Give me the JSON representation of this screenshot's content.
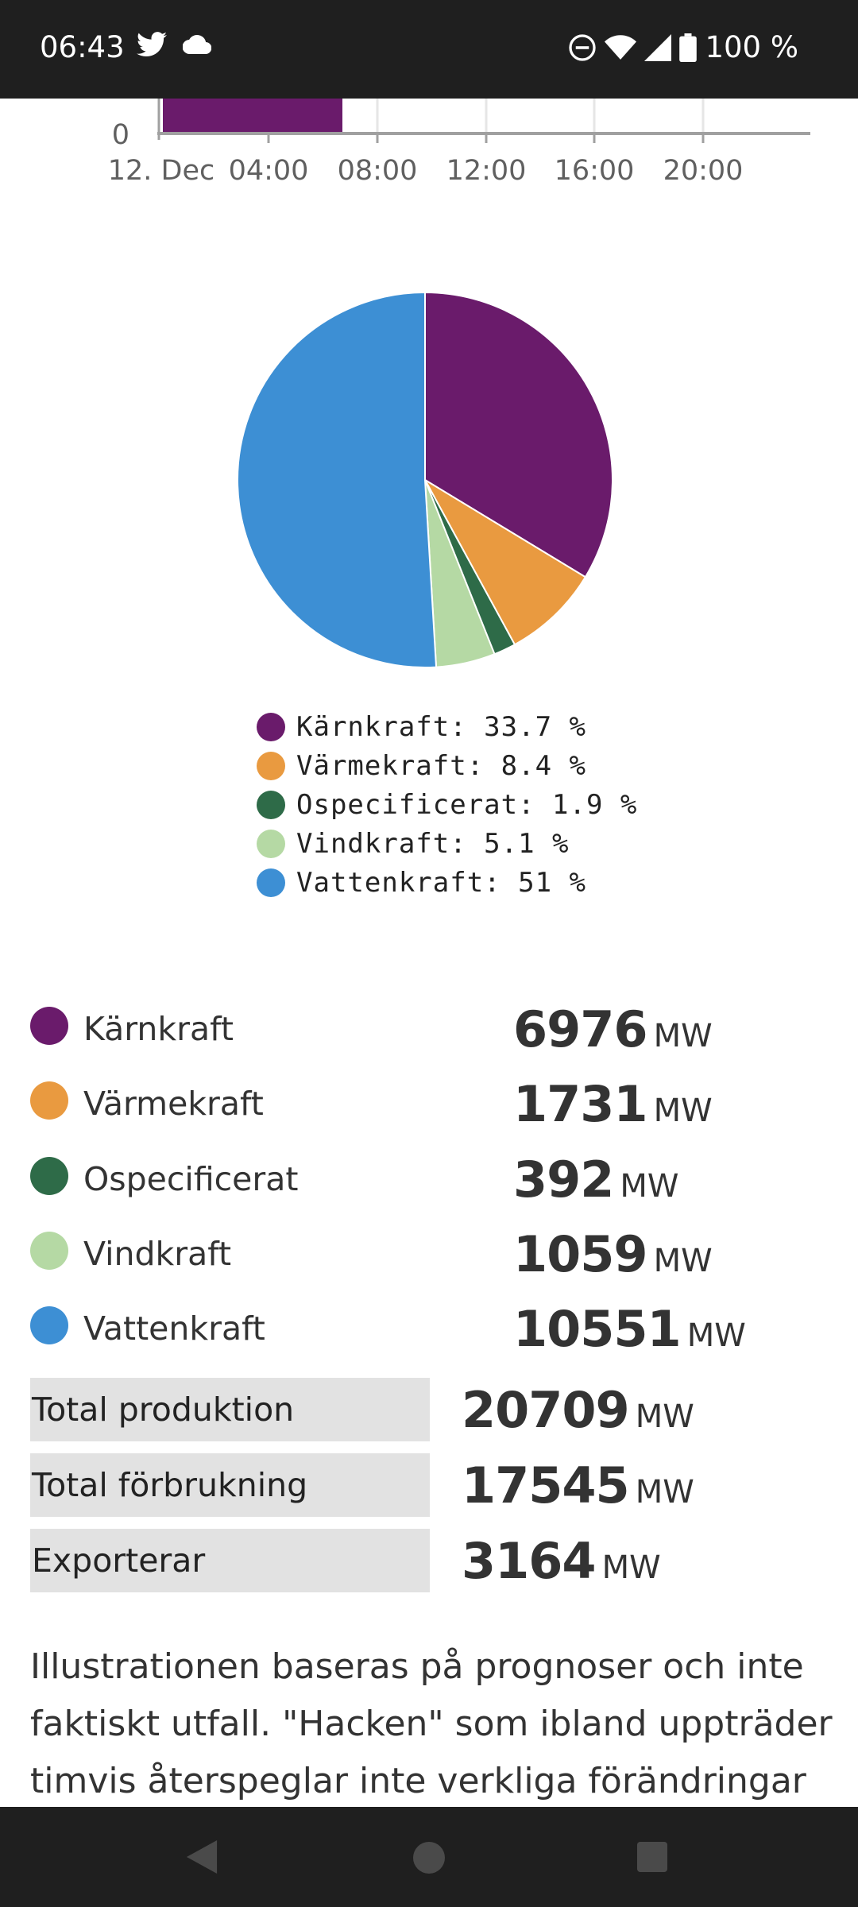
{
  "status_bar": {
    "time": "06:43",
    "left_icons": [
      "twitter-icon",
      "cloud-icon"
    ],
    "right_icons": [
      "do-not-disturb-icon",
      "wifi-icon",
      "cellular-signal-icon",
      "battery-icon"
    ],
    "battery_text": "100 %"
  },
  "area_chart": {
    "y_tick": "0",
    "x_ticks": [
      "12. Dec",
      "04:00",
      "08:00",
      "12:00",
      "16:00",
      "20:00"
    ],
    "series_color": "#6a1b6b"
  },
  "chart_data": {
    "type": "pie",
    "slices": [
      {
        "label": "Kärnkraft",
        "value": 33.7,
        "color": "#6a1b6b"
      },
      {
        "label": "Värmekraft",
        "value": 8.4,
        "color": "#e99a40"
      },
      {
        "label": "Ospecificerat",
        "value": 1.9,
        "color": "#2e6b48"
      },
      {
        "label": "Vindkraft",
        "value": 5.1,
        "color": "#b5d9a4"
      },
      {
        "label": "Vattenkraft",
        "value": 51,
        "color": "#3d8fd4"
      }
    ],
    "legend": [
      "Kärnkraft: 33.7 %",
      "Värmekraft: 8.4 %",
      "Ospecificerat: 1.9 %",
      "Vindkraft: 5.1 %",
      "Vattenkraft: 51 %"
    ]
  },
  "sources": [
    {
      "name": "Kärnkraft",
      "value": "6976",
      "unit": "MW",
      "color": "#6a1b6b"
    },
    {
      "name": "Värmekraft",
      "value": "1731",
      "unit": "MW",
      "color": "#e99a40"
    },
    {
      "name": "Ospecificerat",
      "value": "392",
      "unit": "MW",
      "color": "#2e6b48"
    },
    {
      "name": "Vindkraft",
      "value": "1059",
      "unit": "MW",
      "color": "#b5d9a4"
    },
    {
      "name": "Vattenkraft",
      "value": "10551",
      "unit": "MW",
      "color": "#3d8fd4"
    }
  ],
  "totals": [
    {
      "label": "Total produktion",
      "value": "20709",
      "unit": "MW"
    },
    {
      "label": "Total förbrukning",
      "value": "17545",
      "unit": "MW"
    },
    {
      "label": "Exporterar",
      "value": "3164",
      "unit": "MW"
    }
  ],
  "note": {
    "lines": [
      "Illustrationen baseras på prognoser och inte",
      "faktiskt utfall. \"Hacken\" som ibland uppträder",
      "timvis återspeglar inte verkliga förändringar"
    ]
  },
  "nav_bar": {
    "icons": [
      "back-icon",
      "home-icon",
      "recents-icon"
    ]
  }
}
